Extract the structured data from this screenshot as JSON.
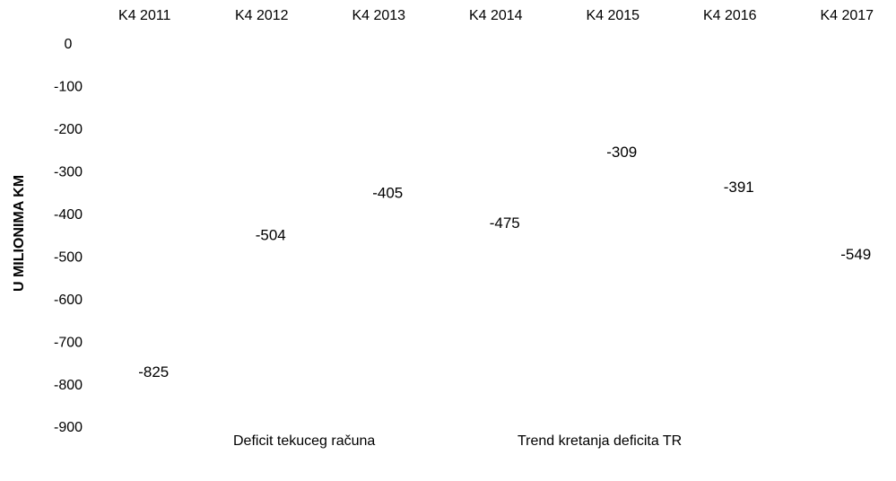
{
  "chart_data": {
    "type": "bar",
    "y_axis_label": "U MILIONIMA KM",
    "categories": [
      "K4 2011",
      "K4 2012",
      "K4 2013",
      "K4 2014",
      "K4 2015",
      "K4 2016",
      "K4 2017"
    ],
    "series": [
      {
        "name": "Deficit tekuceg računa",
        "color": "#ffffff",
        "values": [
          -825,
          -504,
          -405,
          -475,
          -309,
          -391,
          -549
        ]
      }
    ],
    "trendline": {
      "name": "Trend kretanja deficita TR",
      "color": "#ffffff"
    },
    "ylim": [
      -900,
      0
    ],
    "yticks": [
      0,
      -100,
      -200,
      -300,
      -400,
      -500,
      -600,
      -700,
      -800,
      -900
    ],
    "legend": "bottom"
  }
}
